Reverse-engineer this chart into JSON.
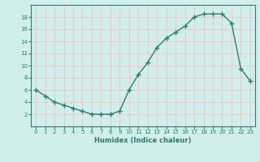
{
  "x": [
    0,
    1,
    2,
    3,
    4,
    5,
    6,
    7,
    8,
    9,
    10,
    11,
    12,
    13,
    14,
    15,
    16,
    17,
    18,
    19,
    20,
    21,
    22,
    23
  ],
  "y": [
    6,
    5,
    4,
    3.5,
    3,
    2.5,
    2,
    2,
    2,
    2.5,
    6,
    8.5,
    10.5,
    13,
    14.5,
    15.5,
    16.5,
    18,
    18.5,
    18.5,
    18.5,
    17,
    9.5,
    7.5
  ],
  "xlabel": "Humidex (Indice chaleur)",
  "xlim": [
    -0.5,
    23.5
  ],
  "ylim": [
    0,
    20
  ],
  "yticks": [
    2,
    4,
    6,
    8,
    10,
    12,
    14,
    16,
    18
  ],
  "xticks": [
    0,
    1,
    2,
    3,
    4,
    5,
    6,
    7,
    8,
    9,
    10,
    11,
    12,
    13,
    14,
    15,
    16,
    17,
    18,
    19,
    20,
    21,
    22,
    23
  ],
  "line_color": "#2e7d6e",
  "bg_color": "#d0eeea",
  "grid_color": "#f0c8c8",
  "marker": "+",
  "marker_size": 4,
  "line_width": 1.0
}
